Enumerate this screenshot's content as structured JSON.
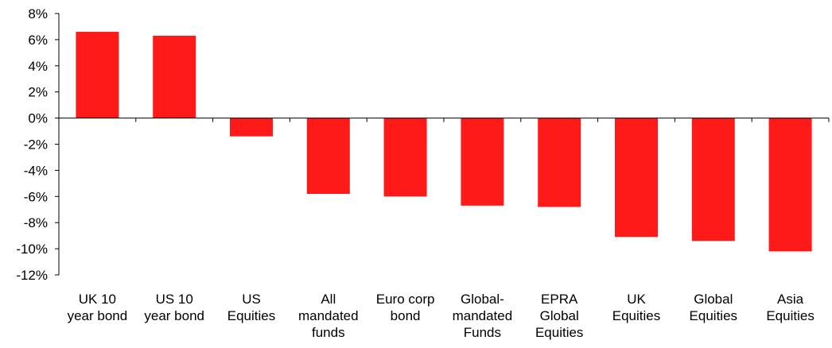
{
  "chart_data": {
    "type": "bar",
    "title": "",
    "xlabel": "",
    "ylabel": "",
    "ylim": [
      -12,
      8
    ],
    "yticks": [
      8,
      6,
      4,
      2,
      0,
      -2,
      -4,
      -6,
      -8,
      -10,
      -12
    ],
    "ytick_labels": [
      "8%",
      "6%",
      "4%",
      "2%",
      "0%",
      "-2%",
      "-4%",
      "-6%",
      "-8%",
      "-10%",
      "-12%"
    ],
    "grid": false,
    "legend": "none",
    "bar_color": "#ff1a1a",
    "categories": [
      [
        "UK 10",
        "year bond"
      ],
      [
        "US 10",
        "year bond"
      ],
      [
        "US",
        "Equities"
      ],
      [
        "All",
        "mandated",
        "funds"
      ],
      [
        "Euro corp",
        "bond"
      ],
      [
        "Global-",
        "mandated",
        "Funds"
      ],
      [
        "EPRA",
        "Global",
        "Equities"
      ],
      [
        "UK",
        "Equities"
      ],
      [
        "Global",
        "Equities"
      ],
      [
        "Asia",
        "Equities"
      ]
    ],
    "values": [
      6.6,
      6.3,
      -1.4,
      -5.8,
      -6.0,
      -6.7,
      -6.8,
      -9.1,
      -9.4,
      -10.2
    ]
  }
}
